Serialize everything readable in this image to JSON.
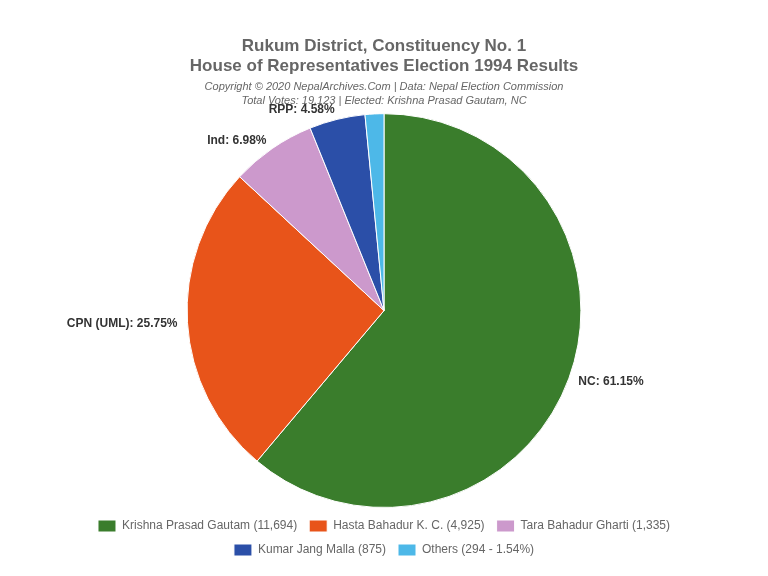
{
  "chart_data": {
    "type": "pie",
    "title": [
      "Rukum District, Constituency No. 1",
      "House of Representatives Election 1994 Results"
    ],
    "subtitle": [
      "Copyright © 2020 NepalArchives.Com | Data: Nepal Election Commission",
      "Total Votes: 19,123 | Elected: Krishna Prasad Gautam, NC"
    ],
    "categories": [
      "Krishna Prasad Gautam (11,694)",
      "Hasta Bahadur K. C. (4,925)",
      "Tara Bahadur Gharti (1,335)",
      "Kumar Jang Malla (875)",
      "Others (294 - 1.54%)"
    ],
    "values": [
      61.15,
      25.75,
      6.98,
      4.58,
      1.54
    ],
    "value_labels": [
      "NC: 61.15%",
      "CPN (UML): 25.75%",
      "Ind: 6.98%",
      "RPP: 4.58%",
      null
    ],
    "data_labels": true,
    "colors": [
      "#3a7d2c",
      "#e8541a",
      "#cc99cc",
      "#2b4fa8",
      "#4db8e8"
    ],
    "legend": "bottom"
  }
}
